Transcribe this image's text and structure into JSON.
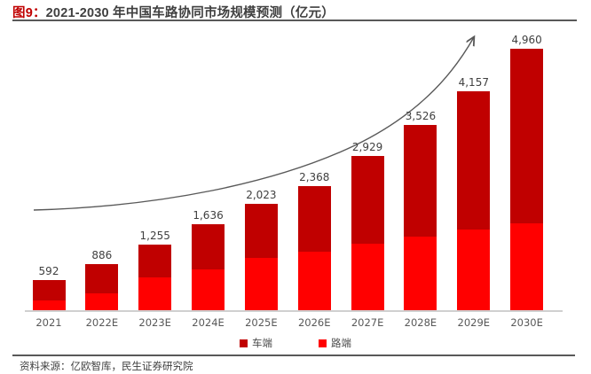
{
  "figure": {
    "label_prefix": "图9：",
    "title": "2021-2030 年中国车路协同市场规模预测（亿元）",
    "source": "资料来源：亿欧智库，民生证券研究院"
  },
  "colors": {
    "vehicle_side": "#c00000",
    "road_side": "#ff0000",
    "title_prefix": "#c00000",
    "title_text": "#3f3f3f",
    "rule": "#595959",
    "axis": "#d0d0d0",
    "arrow": "#595959",
    "value_label": "#404040",
    "tick_label": "#595959"
  },
  "chart_data": {
    "type": "bar",
    "stacked": true,
    "title": "2021-2030 年中国车路协同市场规模预测（亿元）",
    "categories": [
      "2021",
      "2022E",
      "2023E",
      "2024E",
      "2025E",
      "2026E",
      "2027E",
      "2028E",
      "2029E",
      "2030E"
    ],
    "totals": [
      592,
      886,
      1255,
      1636,
      2023,
      2368,
      2929,
      3526,
      4157,
      4960
    ],
    "total_labels": [
      "592",
      "886",
      "1,255",
      "1,636",
      "2,023",
      "2,368",
      "2,929",
      "3,526",
      "4,157",
      "4,960"
    ],
    "series": [
      {
        "name": "车端",
        "color": "#c00000",
        "position": "top",
        "values": [
          392,
          556,
          615,
          856,
          1023,
          1238,
          1649,
          2126,
          2617,
          3300
        ]
      },
      {
        "name": "路端",
        "color": "#ff0000",
        "position": "bottom",
        "values": [
          200,
          330,
          640,
          780,
          1000,
          1130,
          1280,
          1400,
          1540,
          1660
        ]
      }
    ],
    "ylim": [
      0,
      5000
    ],
    "grid": false,
    "y_axis_visible": false,
    "legend_position": "bottom",
    "annotations": [
      "upward-trend-arrow"
    ]
  }
}
